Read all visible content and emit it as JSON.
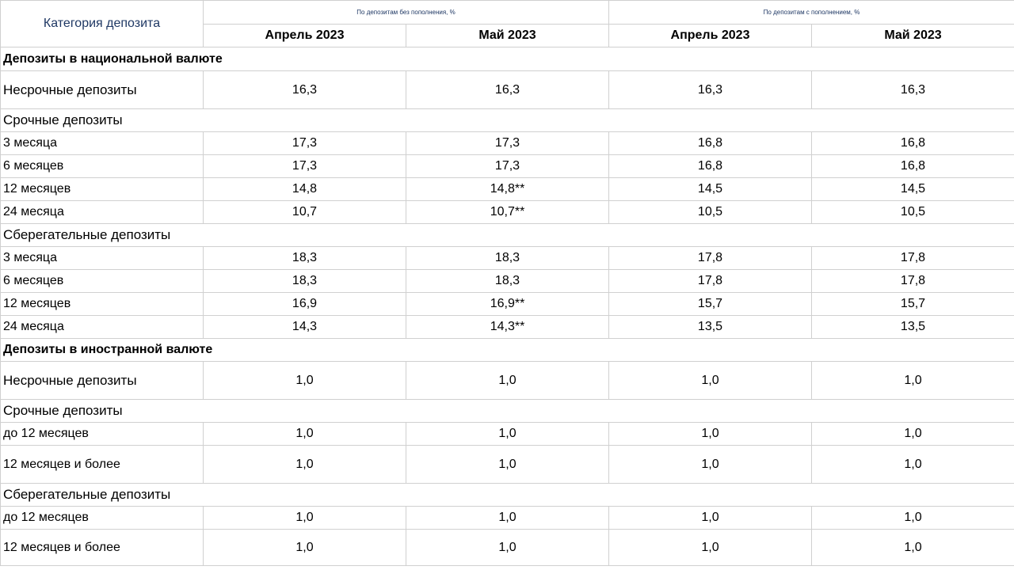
{
  "header": {
    "category_label": "Категория депозита",
    "group_without_topup": "По депозитам  без пополнения, %",
    "group_with_topup": "По депозитам  с пополнением,  %",
    "periods": [
      "Апрель 2023",
      "Май 2023",
      "Апрель 2023",
      "Май 2023"
    ]
  },
  "national": {
    "title": "Депозиты в национальной валюте",
    "demand": {
      "label": "Несрочные депозиты",
      "values": [
        "16,3",
        "16,3",
        "16,3",
        "16,3"
      ]
    },
    "term_title": "Срочные депозиты",
    "term": [
      {
        "label": "3 месяца",
        "values": [
          "17,3",
          "17,3",
          "16,8",
          "16,8"
        ]
      },
      {
        "label": "6 месяцев",
        "values": [
          "17,3",
          "17,3",
          "16,8",
          "16,8"
        ]
      },
      {
        "label": "12 месяцев",
        "values": [
          "14,8",
          "14,8**",
          "14,5",
          "14,5"
        ]
      },
      {
        "label": "24 месяца",
        "values": [
          "10,7",
          "10,7**",
          "10,5",
          "10,5"
        ]
      }
    ],
    "savings_title": "Сберегательные депозиты",
    "savings": [
      {
        "label": "3 месяца",
        "values": [
          "18,3",
          "18,3",
          "17,8",
          "17,8"
        ]
      },
      {
        "label": "6 месяцев",
        "values": [
          "18,3",
          "18,3",
          "17,8",
          "17,8"
        ]
      },
      {
        "label": "12 месяцев",
        "values": [
          "16,9",
          "16,9**",
          "15,7",
          "15,7"
        ]
      },
      {
        "label": "24 месяца",
        "values": [
          "14,3",
          "14,3**",
          "13,5",
          "13,5"
        ]
      }
    ]
  },
  "foreign": {
    "title": "Депозиты в иностранной валюте",
    "demand": {
      "label": "Несрочные депозиты",
      "values": [
        "1,0",
        "1,0",
        "1,0",
        "1,0"
      ]
    },
    "term_title": "Срочные депозиты",
    "term": [
      {
        "label": "до 12 месяцев",
        "values": [
          "1,0",
          "1,0",
          "1,0",
          "1,0"
        ]
      },
      {
        "label": "12 месяцев и более",
        "values": [
          "1,0",
          "1,0",
          "1,0",
          "1,0"
        ]
      }
    ],
    "savings_title": "Сберегательные депозиты",
    "savings": [
      {
        "label": "до 12 месяцев",
        "values": [
          "1,0",
          "1,0",
          "1,0",
          "1,0"
        ]
      },
      {
        "label": "12 месяцев и более",
        "values": [
          "1,0",
          "1,0",
          "1,0",
          "1,0"
        ]
      }
    ]
  }
}
